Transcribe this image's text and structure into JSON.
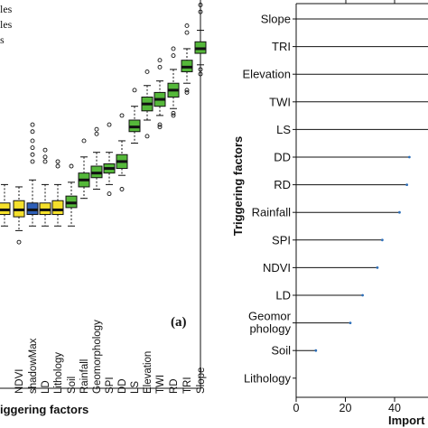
{
  "chart_data": [
    {
      "type": "boxplot",
      "panel_label": "(a)",
      "legend": [
        "les",
        "les",
        "s"
      ],
      "xlabel": "iggering factors",
      "colors": {
        "shadow": "#f5e02b",
        "attribute": "#55b83a",
        "low": "#2e5fb8"
      },
      "categories": [
        "NDVI",
        "shadowMax",
        "LD",
        "Lithology",
        "Soil",
        "Rainfall",
        "Geomorphology",
        "SPI",
        "DD",
        "LS",
        "Elevation",
        "TWI",
        "RD",
        "TRI",
        "Slope"
      ],
      "boxes": [
        {
          "name": "",
          "color": "low",
          "min": 0.46,
          "q1": 0.49,
          "median": 0.505,
          "q3": 0.52,
          "max": 0.55,
          "outliers": []
        },
        {
          "name": "",
          "color": "shadow",
          "min": 0.47,
          "q1": 0.495,
          "median": 0.505,
          "q3": 0.52,
          "max": 0.56,
          "outliers": []
        },
        {
          "name": "NDVI",
          "color": "shadow",
          "min": 0.46,
          "q1": 0.49,
          "median": 0.505,
          "q3": 0.525,
          "max": 0.555,
          "outliers": [
            0.435
          ]
        },
        {
          "name": "shadowMax",
          "color": "low",
          "min": 0.47,
          "q1": 0.495,
          "median": 0.505,
          "q3": 0.52,
          "max": 0.57,
          "outliers": [
            0.61,
            0.625,
            0.64,
            0.655,
            0.675,
            0.69
          ]
        },
        {
          "name": "LD",
          "color": "shadow",
          "min": 0.47,
          "q1": 0.495,
          "median": 0.505,
          "q3": 0.52,
          "max": 0.56,
          "outliers": [
            0.61,
            0.62,
            0.635
          ]
        },
        {
          "name": "Lithology",
          "color": "shadow",
          "min": 0.47,
          "q1": 0.495,
          "median": 0.505,
          "q3": 0.525,
          "max": 0.56,
          "outliers": [
            0.6,
            0.61
          ]
        },
        {
          "name": "Soil",
          "color": "attribute",
          "min": 0.47,
          "q1": 0.51,
          "median": 0.52,
          "q3": 0.535,
          "max": 0.565,
          "outliers": [
            0.6
          ]
        },
        {
          "name": "Rainfall",
          "color": "attribute",
          "min": 0.53,
          "q1": 0.555,
          "median": 0.57,
          "q3": 0.585,
          "max": 0.62,
          "outliers": [
            0.655
          ]
        },
        {
          "name": "Geomorphology",
          "color": "attribute",
          "min": 0.55,
          "q1": 0.575,
          "median": 0.585,
          "q3": 0.6,
          "max": 0.63,
          "outliers": [
            0.67,
            0.68
          ]
        },
        {
          "name": "SPI",
          "color": "attribute",
          "min": 0.56,
          "q1": 0.585,
          "median": 0.595,
          "q3": 0.605,
          "max": 0.63,
          "outliers": [
            0.54,
            0.69
          ]
        },
        {
          "name": "DD",
          "color": "attribute",
          "min": 0.58,
          "q1": 0.595,
          "median": 0.61,
          "q3": 0.625,
          "max": 0.655,
          "outliers": [
            0.55,
            0.71
          ]
        },
        {
          "name": "LS",
          "color": "attribute",
          "min": 0.65,
          "q1": 0.675,
          "median": 0.685,
          "q3": 0.7,
          "max": 0.73,
          "outliers": [
            0.765
          ]
        },
        {
          "name": "Elevation",
          "color": "attribute",
          "min": 0.7,
          "q1": 0.72,
          "median": 0.735,
          "q3": 0.75,
          "max": 0.775,
          "outliers": [
            0.665,
            0.805
          ]
        },
        {
          "name": "TWI",
          "color": "attribute",
          "min": 0.71,
          "q1": 0.73,
          "median": 0.745,
          "q3": 0.76,
          "max": 0.785,
          "outliers": [
            0.685,
            0.69,
            0.815,
            0.83
          ]
        },
        {
          "name": "RD",
          "color": "attribute",
          "min": 0.725,
          "q1": 0.75,
          "median": 0.765,
          "q3": 0.78,
          "max": 0.81,
          "outliers": [
            0.71,
            0.715,
            0.84,
            0.855
          ]
        },
        {
          "name": "TRI",
          "color": "attribute",
          "min": 0.78,
          "q1": 0.805,
          "median": 0.815,
          "q3": 0.83,
          "max": 0.855,
          "outliers": [
            0.76,
            0.765,
            0.89,
            0.905
          ]
        },
        {
          "name": "Slope",
          "color": "attribute",
          "min": 0.82,
          "q1": 0.845,
          "median": 0.855,
          "q3": 0.87,
          "max": 0.895,
          "outliers": [
            0.8,
            0.81,
            0.935,
            0.95
          ]
        }
      ]
    },
    {
      "type": "bar",
      "orientation": "horizontal",
      "ylabel": "Triggering factors",
      "xlabel": "Import",
      "xticks": [
        0,
        20,
        40
      ],
      "xlim": [
        0,
        65
      ],
      "categories": [
        "Slope",
        "TRI",
        "Elevation",
        "TWI",
        "LS",
        "DD",
        "RD",
        "Rainfall",
        "SPI",
        "NDVI",
        "LD",
        "Geomor\nphology",
        "Soil",
        "Lithology"
      ],
      "values": [
        66,
        64,
        62,
        60,
        55,
        46,
        45,
        42,
        35,
        33,
        27,
        22,
        8,
        0
      ]
    }
  ]
}
